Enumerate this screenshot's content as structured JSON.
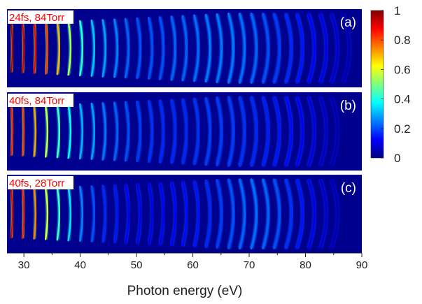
{
  "chart_data": {
    "type": "heatmap",
    "xlabel": "Photon energy (eV)",
    "xlim": [
      27,
      90
    ],
    "x_ticks": [
      30,
      40,
      50,
      60,
      70,
      80,
      90
    ],
    "x_tick_labels": [
      "30",
      "40",
      "50",
      "60",
      "70",
      "80",
      "90"
    ],
    "colorbar": {
      "range": [
        0,
        1
      ],
      "ticks": [
        0,
        0.2,
        0.4,
        0.6,
        0.8,
        1
      ],
      "tick_labels": [
        "0",
        "0.2",
        "0.4",
        "0.6",
        "0.8",
        "1"
      ],
      "colormap": "jet"
    },
    "panels": [
      {
        "panel_label": "(a)",
        "condition": "24fs, 84Torr",
        "harmonics_eV": [
          28.0,
          30.0,
          32.1,
          34.2,
          36.3,
          38.3,
          40.4,
          42.5,
          44.5,
          46.6,
          48.6,
          50.7,
          52.8,
          54.8,
          56.9,
          58.9,
          61.0,
          63.1,
          65.1,
          67.2,
          69.2,
          71.3,
          73.4,
          75.4,
          77.5,
          79.5,
          81.6,
          83.7,
          85.7,
          87.8
        ],
        "intensity": [
          0.95,
          0.92,
          0.88,
          0.82,
          0.7,
          0.55,
          0.42,
          0.32,
          0.28,
          0.25,
          0.22,
          0.2,
          0.2,
          0.2,
          0.22,
          0.22,
          0.23,
          0.24,
          0.24,
          0.24,
          0.23,
          0.22,
          0.2,
          0.18,
          0.16,
          0.14,
          0.12,
          0.1,
          0.07,
          0.04
        ]
      },
      {
        "panel_label": "(b)",
        "condition": "40fs, 84Torr",
        "harmonics_eV": [
          28.0,
          30.0,
          32.1,
          34.2,
          36.3,
          38.3,
          40.4,
          42.5,
          44.5,
          46.6,
          48.6,
          50.7,
          52.8,
          54.8,
          56.9,
          58.9,
          61.0,
          63.1,
          65.1,
          67.2,
          69.2,
          71.3,
          73.4,
          75.4,
          77.5,
          79.5,
          81.6,
          83.7,
          85.7
        ],
        "intensity": [
          0.85,
          0.82,
          0.72,
          0.58,
          0.45,
          0.38,
          0.3,
          0.28,
          0.24,
          0.22,
          0.2,
          0.18,
          0.17,
          0.16,
          0.16,
          0.16,
          0.17,
          0.18,
          0.18,
          0.18,
          0.17,
          0.16,
          0.15,
          0.14,
          0.13,
          0.11,
          0.09,
          0.06,
          0.03
        ]
      },
      {
        "panel_label": "(c)",
        "condition": "40fs, 28Torr",
        "harmonics_eV": [
          28.0,
          30.0,
          32.1,
          34.2,
          36.3,
          38.3,
          40.4,
          42.5,
          44.5,
          46.6,
          48.6,
          50.7,
          52.8,
          54.8,
          56.9,
          58.9,
          61.0,
          63.1,
          65.1,
          67.2,
          69.2,
          71.3,
          73.4,
          75.4,
          77.5,
          79.5,
          81.6,
          83.7,
          85.7
        ],
        "intensity": [
          0.9,
          0.85,
          0.75,
          0.6,
          0.45,
          0.35,
          0.25,
          0.2,
          0.16,
          0.14,
          0.12,
          0.11,
          0.1,
          0.11,
          0.12,
          0.13,
          0.14,
          0.16,
          0.18,
          0.2,
          0.22,
          0.23,
          0.22,
          0.2,
          0.17,
          0.14,
          0.1,
          0.07,
          0.04
        ]
      }
    ]
  }
}
